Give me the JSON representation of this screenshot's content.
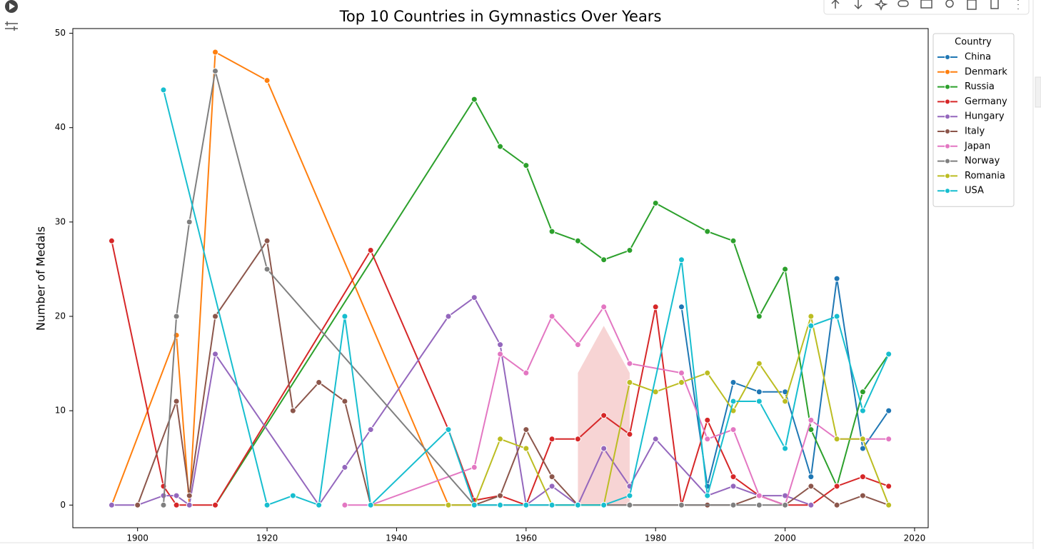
{
  "chart_data": {
    "type": "line",
    "title": "Top 10 Countries in Gymnastics Over Years",
    "y_label": "Number of Medals",
    "legend_title": "Country",
    "legend_position": "outside-right",
    "xlim": [
      1890,
      2022.1
    ],
    "xticks": [
      1900,
      1920,
      1940,
      1960,
      1980,
      2000,
      2020
    ],
    "ylim": [
      -2.4,
      50.5
    ],
    "yticks": [
      0,
      10,
      20,
      30,
      40,
      50
    ],
    "series": [
      {
        "name": "China",
        "color": "#1f77b4",
        "x": [
          1984,
          1988,
          1992,
          1996,
          2000,
          2004,
          2008,
          2012,
          2016
        ],
        "values": [
          21,
          2,
          13,
          12,
          12,
          3,
          24,
          6,
          10
        ]
      },
      {
        "name": "Denmark",
        "color": "#ff7f0e",
        "x": [
          1896,
          1906,
          1908,
          1912,
          1920,
          1948
        ],
        "values": [
          0,
          18,
          0,
          48,
          45,
          0
        ]
      },
      {
        "name": "Russia",
        "color": "#2ca02c",
        "x": [
          1912,
          1952,
          1956,
          1960,
          1964,
          1968,
          1972,
          1976,
          1980,
          1988,
          1992,
          1996,
          2000,
          2004,
          2008,
          2012,
          2016
        ],
        "values": [
          0,
          43,
          38,
          36,
          29,
          28,
          26,
          27,
          32,
          29,
          28,
          20,
          25,
          8,
          2,
          12,
          16
        ]
      },
      {
        "name": "Germany",
        "color": "#d62728",
        "x": [
          1896,
          1904,
          1906,
          1912,
          1936,
          1948,
          1952,
          1956,
          1960,
          1964,
          1968,
          1972,
          1976,
          1980,
          1984,
          1988,
          1992,
          1996,
          2000,
          2004,
          2008,
          2012,
          2016
        ],
        "values": [
          28,
          2,
          0,
          0,
          27,
          8,
          0.5,
          1,
          0,
          7,
          7,
          9.5,
          7.5,
          21,
          0,
          9,
          3,
          1,
          0,
          0,
          2,
          3,
          2
        ],
        "band": {
          "x": [
            1968,
            1972,
            1976
          ],
          "low": [
            0,
            0,
            0
          ],
          "high": [
            14,
            19,
            14
          ]
        }
      },
      {
        "name": "Hungary",
        "color": "#9467bd",
        "x": [
          1896,
          1900,
          1904,
          1906,
          1908,
          1912,
          1928,
          1932,
          1936,
          1948,
          1952,
          1956,
          1960,
          1964,
          1968,
          1972,
          1976,
          1980,
          1988,
          1992,
          1996,
          2000,
          2004
        ],
        "values": [
          0,
          0,
          1,
          1,
          0,
          16,
          0,
          4,
          8,
          20,
          22,
          17,
          0,
          2,
          0,
          6,
          2,
          7,
          1,
          2,
          1,
          1,
          0
        ]
      },
      {
        "name": "Italy",
        "color": "#8c564b",
        "x": [
          1900,
          1906,
          1908,
          1912,
          1920,
          1924,
          1928,
          1932,
          1936,
          1948,
          1952,
          1956,
          1960,
          1964,
          1968,
          1972,
          1976,
          1984,
          1988,
          1992,
          1996,
          2000,
          2004,
          2008,
          2012,
          2016
        ],
        "values": [
          0,
          11,
          1,
          20,
          28,
          10,
          13,
          11,
          0,
          0,
          0,
          1,
          8,
          3,
          0,
          0,
          0,
          0,
          0,
          0,
          1,
          0,
          2,
          0,
          1,
          0
        ]
      },
      {
        "name": "Japan",
        "color": "#e377c2",
        "x": [
          1932,
          1936,
          1952,
          1956,
          1960,
          1964,
          1968,
          1972,
          1976,
          1984,
          1988,
          1992,
          1996,
          2000,
          2004,
          2008,
          2012,
          2016
        ],
        "values": [
          0,
          0,
          4,
          16,
          14,
          20,
          17,
          21,
          15,
          14,
          7,
          8,
          1,
          0,
          9,
          7,
          7,
          7
        ]
      },
      {
        "name": "Norway",
        "color": "#7f7f7f",
        "x": [
          1904,
          1906,
          1908,
          1912,
          1920,
          1952,
          1976,
          1984,
          1992,
          1996,
          2000
        ],
        "values": [
          0,
          20,
          30,
          46,
          25,
          0,
          0,
          0,
          0,
          0,
          0
        ]
      },
      {
        "name": "Romania",
        "color": "#bcbd22",
        "x": [
          1936,
          1948,
          1952,
          1956,
          1960,
          1964,
          1968,
          1972,
          1976,
          1980,
          1984,
          1988,
          1992,
          1996,
          2000,
          2004,
          2008,
          2012,
          2016
        ],
        "values": [
          0,
          0,
          0,
          7,
          6,
          0,
          0,
          0,
          13,
          12,
          13,
          14,
          10,
          15,
          11,
          20,
          7,
          7,
          0
        ]
      },
      {
        "name": "USA",
        "color": "#17becf",
        "x": [
          1904,
          1920,
          1924,
          1928,
          1932,
          1936,
          1948,
          1952,
          1956,
          1960,
          1964,
          1968,
          1972,
          1976,
          1984,
          1988,
          1992,
          1996,
          2000,
          2004,
          2008,
          2012,
          2016
        ],
        "values": [
          44,
          0,
          1,
          0,
          20,
          0,
          8,
          0,
          0,
          0,
          0,
          0,
          0,
          1,
          26,
          1,
          11,
          11,
          6,
          19,
          20,
          10,
          16
        ]
      }
    ]
  }
}
